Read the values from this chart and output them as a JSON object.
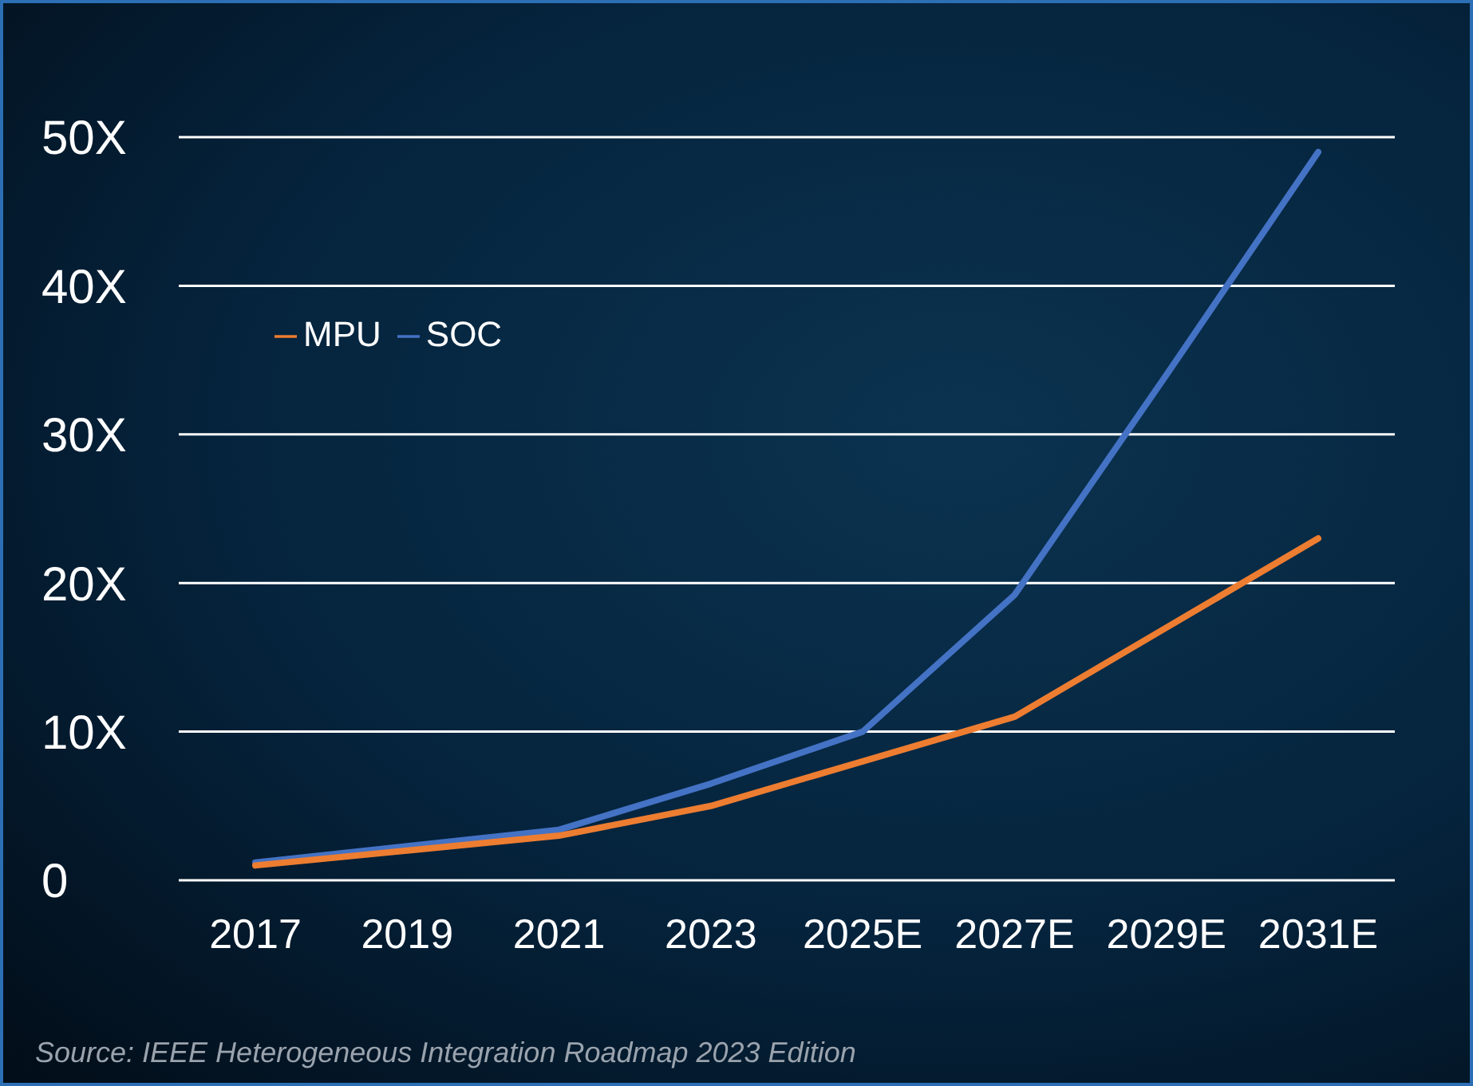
{
  "chart_data": {
    "type": "line",
    "categories": [
      "2017",
      "2019",
      "2021",
      "2023",
      "2025E",
      "2027E",
      "2029E",
      "2031E"
    ],
    "series": [
      {
        "name": "SOC",
        "color": "#4472c4",
        "values": [
          1.2,
          2.3,
          3.4,
          6.5,
          10,
          19.2,
          34,
          49
        ]
      },
      {
        "name": "MPU",
        "color": "#ed7d31",
        "values": [
          1,
          2,
          3,
          5,
          8,
          11,
          17,
          23
        ]
      }
    ],
    "ylim": [
      0,
      50
    ],
    "yticks": [
      0,
      {
        "value": 10,
        "label": "10X"
      },
      {
        "value": 20,
        "label": "20X"
      },
      {
        "value": 30,
        "label": "30X"
      },
      {
        "value": 40,
        "label": "40X"
      },
      {
        "value": 50,
        "label": "50X"
      }
    ],
    "grid": "y",
    "legend": "top left",
    "marker": "none",
    "line_style": "solid",
    "annotations": [
      "Source: IEEE Heterogeneous Integration Roadmap 2023 Edition"
    ]
  }
}
